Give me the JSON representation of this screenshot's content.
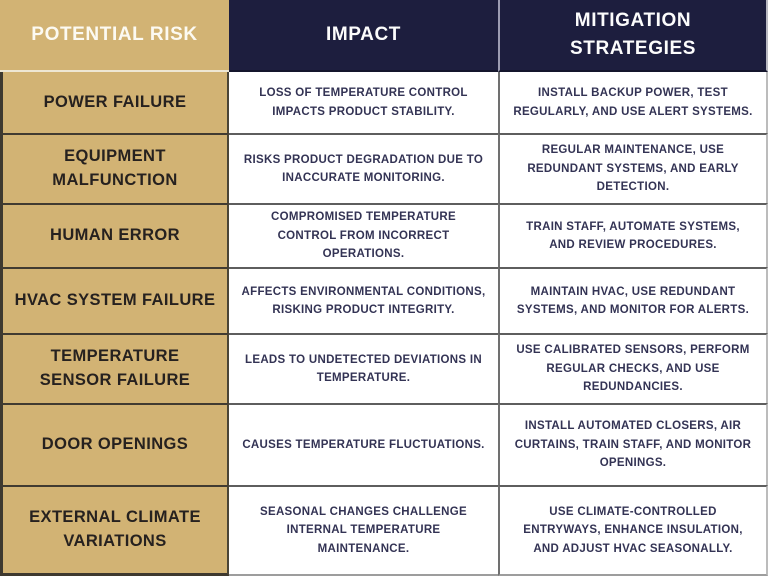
{
  "colors": {
    "gold": "#d2b374",
    "navy": "#1d1e3e",
    "body_text": "#333354",
    "risk_text": "#26211f",
    "header_text": "#fcfcfc"
  },
  "table": {
    "headers": [
      "POTENTIAL RISK",
      "IMPACT",
      "MITIGATION STRATEGIES"
    ],
    "rows": [
      {
        "risk": "POWER FAILURE",
        "impact": "LOSS OF TEMPERATURE CONTROL IMPACTS PRODUCT STABILITY.",
        "mitigation": "INSTALL BACKUP POWER, TEST REGULARLY, AND USE ALERT SYSTEMS."
      },
      {
        "risk": "EQUIPMENT MALFUNCTION",
        "impact": "RISKS PRODUCT DEGRADATION DUE TO INACCURATE MONITORING.",
        "mitigation": "REGULAR MAINTENANCE, USE REDUNDANT SYSTEMS, AND EARLY DETECTION."
      },
      {
        "risk": "HUMAN ERROR",
        "impact": "COMPROMISED TEMPERATURE CONTROL FROM INCORRECT OPERATIONS.",
        "mitigation": "TRAIN STAFF, AUTOMATE SYSTEMS, AND REVIEW PROCEDURES."
      },
      {
        "risk": "HVAC SYSTEM FAILURE",
        "impact": "AFFECTS ENVIRONMENTAL CONDITIONS, RISKING PRODUCT INTEGRITY.",
        "mitigation": "MAINTAIN HVAC, USE REDUNDANT SYSTEMS, AND MONITOR FOR ALERTS."
      },
      {
        "risk": "TEMPERATURE SENSOR FAILURE",
        "impact": "LEADS TO UNDETECTED DEVIATIONS IN TEMPERATURE.",
        "mitigation": "USE CALIBRATED SENSORS, PERFORM REGULAR CHECKS, AND USE REDUNDANCIES."
      },
      {
        "risk": "DOOR OPENINGS",
        "impact": "CAUSES TEMPERATURE FLUCTUATIONS.",
        "mitigation": "INSTALL AUTOMATED CLOSERS, AIR CURTAINS, TRAIN STAFF, AND MONITOR OPENINGS."
      },
      {
        "risk": "EXTERNAL CLIMATE VARIATIONS",
        "impact": "SEASONAL CHANGES CHALLENGE INTERNAL TEMPERATURE MAINTENANCE.",
        "mitigation": "USE CLIMATE-CONTROLLED ENTRYWAYS, ENHANCE INSULATION, AND ADJUST HVAC SEASONALLY."
      }
    ]
  }
}
